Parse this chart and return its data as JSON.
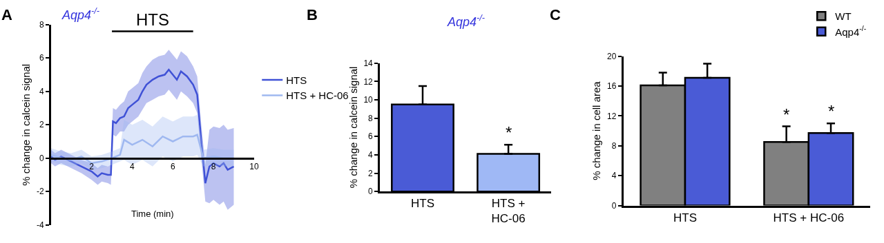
{
  "chart_data": [
    {
      "type": "line",
      "title": "Aqp4$^{-/-}$",
      "xlabel": "Time (min)",
      "ylabel": "% change in calcein signal",
      "annotations": [
        "A",
        {
          "text": "HTS",
          "x": 5,
          "y": 7.6
        }
      ],
      "xlim": [
        0,
        10
      ],
      "xticks": [
        2,
        4,
        6,
        8,
        10
      ],
      "ylim": [
        -4,
        8
      ],
      "yticks": [
        -4,
        -2,
        0,
        2,
        4,
        6,
        8
      ],
      "legend": "right",
      "series": [
        {
          "color": "#000000",
          "x": [
            3,
            7
          ],
          "values": [
            7.6,
            7.6
          ]
        },
        {
          "name": "HTS",
          "color": "#3f51d6",
          "x": [
            0,
            0.2,
            0.5,
            1.0,
            1.5,
            2.0,
            2.3,
            2.5,
            2.8,
            2.95,
            3.05,
            3.2,
            3.4,
            3.6,
            3.8,
            4.0,
            4.3,
            4.5,
            4.7,
            5.0,
            5.3,
            5.6,
            5.8,
            6.0,
            6.2,
            6.4,
            6.7,
            7.0,
            7.2,
            7.4,
            7.6,
            7.8,
            8.0,
            8.3,
            8.5,
            8.7,
            9.0
          ],
          "values": [
            0.1,
            -0.1,
            0.1,
            -0.2,
            -0.5,
            -0.8,
            -1.1,
            -0.9,
            -1.0,
            -1.0,
            2.2,
            2.1,
            2.4,
            2.5,
            3.0,
            3.2,
            3.5,
            4.0,
            4.4,
            4.7,
            4.9,
            5.0,
            5.3,
            5.0,
            4.7,
            5.2,
            4.9,
            4.4,
            3.8,
            1.0,
            -1.5,
            -0.5,
            -0.3,
            -0.5,
            -0.3,
            -0.7,
            -0.5
          ],
          "upper": [
            0.5,
            0.3,
            0.5,
            0.2,
            -0.1,
            -0.3,
            -0.6,
            -0.4,
            -0.5,
            -0.4,
            3.0,
            2.9,
            3.2,
            3.4,
            4.0,
            4.2,
            4.5,
            5.1,
            5.5,
            5.9,
            6.1,
            6.2,
            6.5,
            6.2,
            5.9,
            6.4,
            6.1,
            5.5,
            4.9,
            2.0,
            -0.4,
            1.7,
            1.9,
            1.8,
            2.0,
            1.7,
            1.8
          ],
          "lower": [
            -0.3,
            -0.5,
            -0.3,
            -0.6,
            -0.9,
            -1.3,
            -1.6,
            -1.4,
            -1.5,
            -1.6,
            1.4,
            1.3,
            1.6,
            1.6,
            2.0,
            2.2,
            2.5,
            2.9,
            3.3,
            3.5,
            3.7,
            3.8,
            4.1,
            3.8,
            3.5,
            4.0,
            3.7,
            3.3,
            2.7,
            0.0,
            -2.6,
            -2.7,
            -2.5,
            -2.8,
            -2.6,
            -3.1,
            -2.8
          ]
        },
        {
          "name": "HTS + HC-06",
          "color": "#9fb8f0",
          "x": [
            0,
            0.5,
            1.0,
            1.5,
            2.0,
            2.5,
            3.0,
            3.4,
            3.6,
            4.0,
            4.5,
            5.0,
            5.5,
            6.0,
            6.5,
            7.0,
            7.2,
            7.5,
            8.0,
            8.5,
            9.0
          ],
          "values": [
            0.2,
            0.0,
            -0.1,
            0.1,
            -0.3,
            -0.2,
            0.0,
            0.2,
            1.1,
            0.8,
            1.1,
            0.7,
            1.3,
            1.0,
            1.3,
            1.3,
            1.4,
            0.0,
            0.1,
            0.0,
            0.0
          ],
          "upper": [
            0.6,
            0.4,
            0.3,
            0.5,
            0.1,
            0.2,
            0.4,
            0.6,
            2.3,
            2.0,
            2.3,
            1.9,
            2.5,
            2.2,
            2.5,
            2.5,
            2.6,
            0.5,
            0.6,
            0.5,
            0.5
          ],
          "lower": [
            -0.2,
            -0.4,
            -0.5,
            -0.3,
            -0.7,
            -0.6,
            -0.4,
            -0.2,
            -0.1,
            -0.4,
            -0.1,
            -0.5,
            0.1,
            -0.2,
            0.1,
            0.1,
            0.2,
            -0.5,
            -0.4,
            -0.5,
            -0.5
          ]
        }
      ]
    },
    {
      "type": "bar",
      "title": "Aqp4$^{-/-}$",
      "ylabel": "% change in calcein signal",
      "annotations": [
        "B"
      ],
      "categories": [
        "HTS",
        "HTS +\nHC-06"
      ],
      "ylim": [
        0,
        14
      ],
      "yticks": [
        0,
        2,
        4,
        6,
        8,
        10,
        12,
        14
      ],
      "series": [
        {
          "colors": [
            "#4a5bd6",
            "#9fb8f5"
          ],
          "values": [
            9.5,
            4.1
          ],
          "value_labels": [
            null,
            "*"
          ],
          "errors": [
            [
              9.5,
              11.5
            ],
            [
              4.1,
              5.1
            ]
          ]
        }
      ]
    },
    {
      "type": "bar",
      "ylabel": "% change in cell area",
      "annotations": [
        "C"
      ],
      "categories": [
        "HTS",
        "HTS + HC-06"
      ],
      "ylim": [
        0,
        20
      ],
      "yticks": [
        0,
        4,
        8,
        12,
        16,
        20
      ],
      "legend": "top right",
      "series": [
        {
          "name": "WT",
          "color": "#808080",
          "values": [
            16.1,
            8.5
          ],
          "value_labels": [
            null,
            "*"
          ],
          "errors": [
            [
              16.1,
              17.8
            ],
            [
              8.5,
              10.6
            ]
          ]
        },
        {
          "name": "Aqp4$^{-/-}$",
          "color": "#4a5bd6",
          "values": [
            17.1,
            9.7
          ],
          "value_labels": [
            null,
            "*"
          ],
          "errors": [
            [
              17.1,
              19.0
            ],
            [
              9.7,
              11.0
            ]
          ]
        }
      ]
    }
  ]
}
